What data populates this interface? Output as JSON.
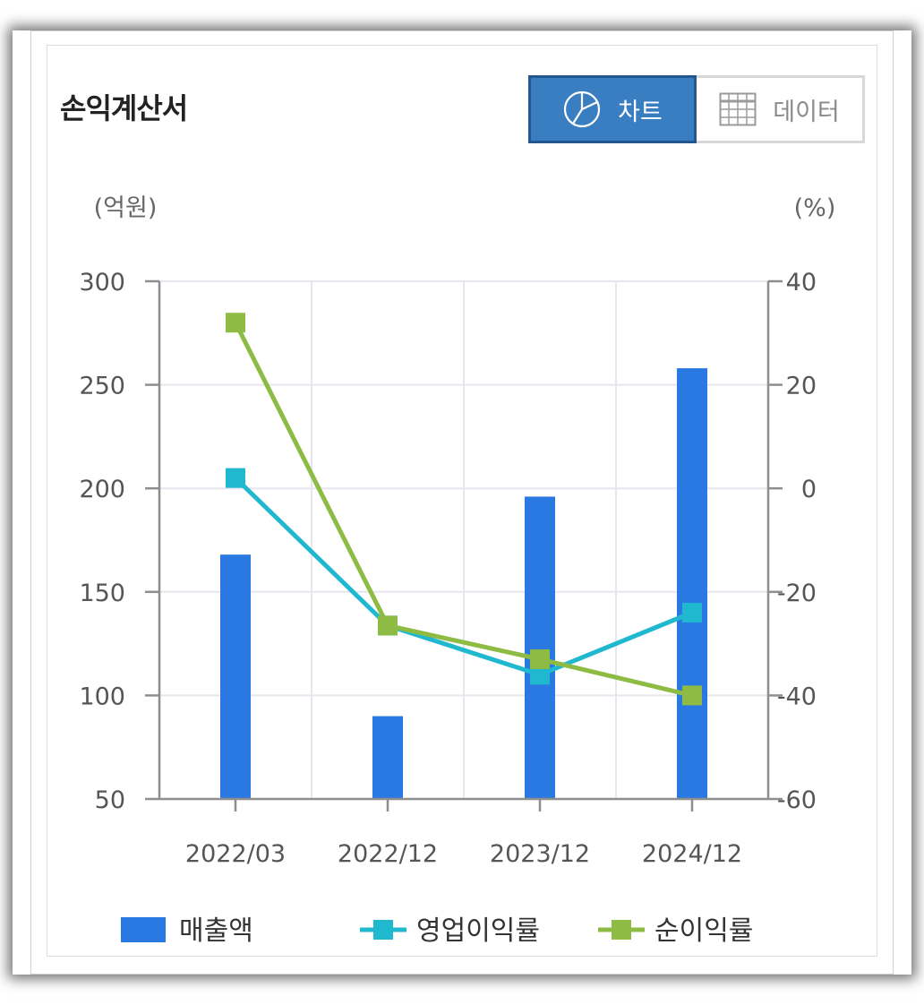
{
  "header": {
    "title": "손익계산서",
    "toggle": {
      "chart_label": "차트",
      "data_label": "데이터",
      "chart_icon": "pie-chart-icon",
      "data_icon": "table-grid-icon"
    }
  },
  "colors": {
    "sales": "#2a78e2",
    "operating_margin": "#1fb8cf",
    "net_margin": "#8dbb44",
    "active_toggle": "#3a7ec2",
    "axis": "#8e8e8e",
    "grid": "#e6e6ee"
  },
  "chart_data": {
    "type": "bar+line",
    "title": "",
    "categories": [
      "2022/03",
      "2022/12",
      "2023/12",
      "2024/12"
    ],
    "y_left": {
      "unit": "(억원)",
      "range": [
        50,
        300
      ],
      "ticks": [
        "300",
        "250",
        "200",
        "150",
        "100",
        "50"
      ],
      "tick_values": [
        300,
        250,
        200,
        150,
        100,
        50
      ]
    },
    "y_right": {
      "unit": "(%)",
      "range": [
        -60,
        40
      ],
      "ticks": [
        "40",
        "20",
        "0",
        "-20",
        "-40",
        "-60"
      ],
      "tick_values": [
        40,
        20,
        0,
        -20,
        -40,
        -60
      ]
    },
    "series": [
      {
        "name": "매출액",
        "type": "bar",
        "axis": "left",
        "values": [
          168,
          90,
          196,
          258
        ]
      },
      {
        "name": "영업이익률",
        "type": "line",
        "axis": "right",
        "values": [
          2,
          -26.5,
          -36,
          -24
        ]
      },
      {
        "name": "순이익률",
        "type": "line",
        "axis": "right",
        "values": [
          32,
          -26.5,
          -33,
          -40
        ]
      }
    ],
    "grid": true,
    "legend_position": "bottom"
  }
}
